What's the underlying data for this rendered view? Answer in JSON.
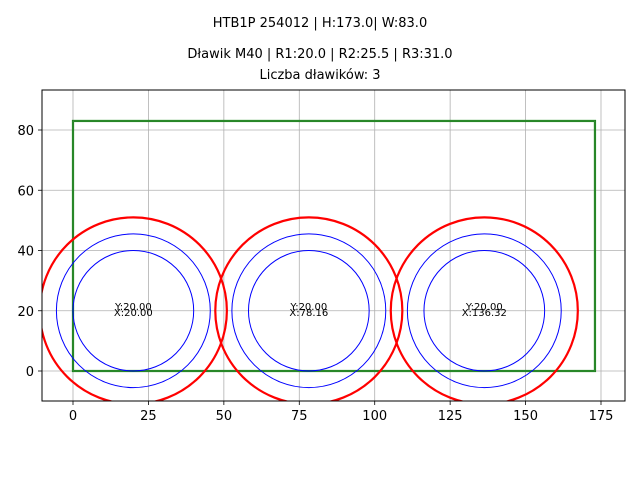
{
  "titles": {
    "line1": "HTB1P 254012 | H:173.0| W:83.0",
    "line2": "Dławik M40 | R1:20.0 | R2:25.5 | R3:31.0",
    "line3": "Liczba dławików: 3"
  },
  "chart_data": {
    "type": "scatter",
    "title": "HTB1P 254012 | H:173.0| W:83.0\nDławik M40 | R1:20.0 | R2:25.5 | R3:31.0\nLiczba dławików: 3",
    "xlabel": "",
    "ylabel": "",
    "xlim": [
      -10,
      183
    ],
    "ylim": [
      -10,
      93
    ],
    "grid": true,
    "legend": "none",
    "x_ticks": [
      "0",
      "25",
      "50",
      "75",
      "100",
      "125",
      "150",
      "175"
    ],
    "y_ticks": [
      "0",
      "20",
      "40",
      "60",
      "80"
    ],
    "rectangle": {
      "x": 0,
      "y": 0,
      "width": 173.0,
      "height": 83.0,
      "color": "#008000"
    },
    "radii": {
      "R1": 20.0,
      "R2": 25.5,
      "R3": 31.0
    },
    "colors": {
      "R1": "#0000ff",
      "R2": "#0000ff",
      "R3": "#ff0000"
    },
    "circles": [
      {
        "x": 20.0,
        "y": 20.0,
        "label_x": "X:20.00",
        "label_y": "Y:20.00"
      },
      {
        "x": 78.16,
        "y": 20.0,
        "label_x": "X:78.16",
        "label_y": "Y:20.00"
      },
      {
        "x": 136.32,
        "y": 20.0,
        "label_x": "X:136.32",
        "label_y": "Y:20.00"
      }
    ]
  }
}
